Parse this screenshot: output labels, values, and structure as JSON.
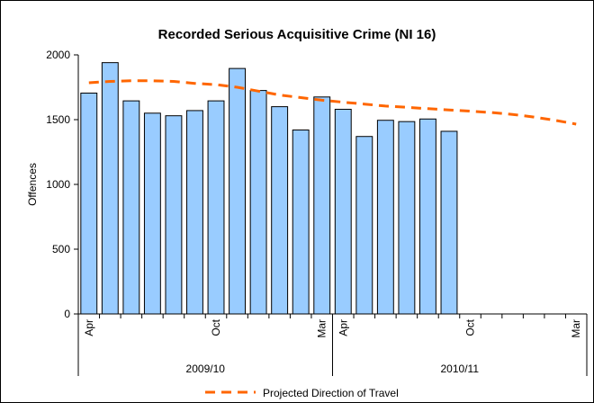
{
  "chart_data": {
    "type": "bar",
    "title": "Recorded Serious Acquisitive Crime (NI 16)",
    "ylabel": "Offences",
    "xlabel": "",
    "ylim": [
      0,
      2000
    ],
    "yticks": [
      "0",
      "500",
      "1000",
      "1500",
      "2000"
    ],
    "grid": false,
    "legend_placement": "bottom",
    "month_labels": [
      "Apr",
      "Oct",
      "Mar",
      "Apr",
      "Oct",
      "Mar"
    ],
    "month_label_slots": [
      0,
      6,
      11,
      12,
      18,
      23
    ],
    "year_groups": [
      {
        "label": "2009/10",
        "start": 0,
        "end": 12
      },
      {
        "label": "2010/11",
        "start": 12,
        "end": 24
      }
    ],
    "series": [
      {
        "values": [
          1705,
          1940,
          1645,
          1550,
          1530,
          1570,
          1645,
          1895,
          1725,
          1600,
          1420,
          1675,
          1580,
          1370,
          1495,
          1485,
          1505,
          1410
        ],
        "color": "#99CCFF"
      },
      {
        "name": "Projected Direction of Travel",
        "type": "line",
        "style": "dashed",
        "color": "#FF6600",
        "values": [
          1785,
          1795,
          1800,
          1800,
          1795,
          1780,
          1770,
          1750,
          1720,
          1690,
          1670,
          1650,
          1635,
          1620,
          1605,
          1595,
          1585,
          1575,
          1565,
          1555,
          1540,
          1520,
          1495,
          1465
        ]
      }
    ]
  }
}
